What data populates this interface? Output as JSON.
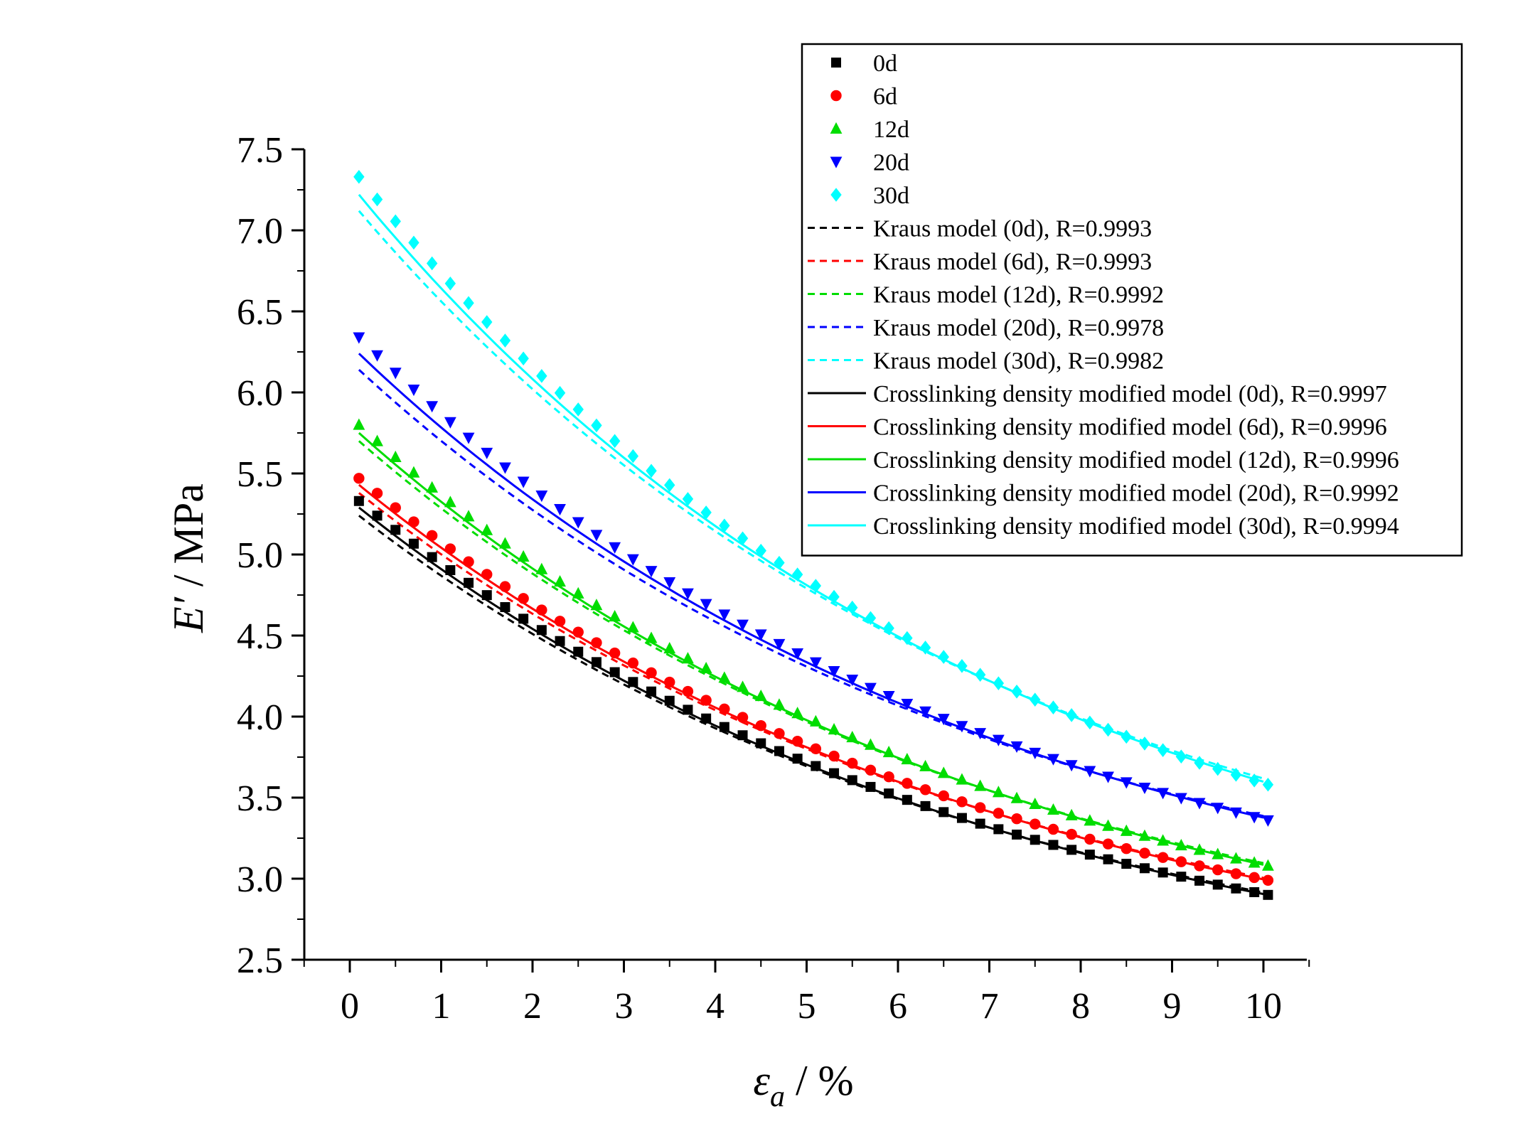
{
  "chart_data": {
    "type": "scatter",
    "xlabel_symbol": "ε",
    "xlabel_subscript": "a",
    "xlabel_unit": " / %",
    "ylabel_symbol": "E′",
    "ylabel_unit": " / MPa",
    "xlim": [
      -0.5,
      10.5
    ],
    "ylim": [
      2.5,
      7.5
    ],
    "x_ticks": [
      0,
      1,
      2,
      3,
      4,
      5,
      6,
      7,
      8,
      9,
      10
    ],
    "x_tick_labels": [
      "0",
      "1",
      "2",
      "3",
      "4",
      "5",
      "6",
      "7",
      "8",
      "9",
      "10"
    ],
    "y_ticks": [
      2.5,
      3.0,
      3.5,
      4.0,
      4.5,
      5.0,
      5.5,
      6.0,
      6.5,
      7.0,
      7.5
    ],
    "y_tick_labels": [
      "2.5",
      "3.0",
      "3.5",
      "4.0",
      "4.5",
      "5.0",
      "5.5",
      "6.0",
      "6.5",
      "7.0",
      "7.5"
    ],
    "legend_position": "top-right",
    "series": [
      {
        "name": "0d",
        "marker": "square",
        "color": "#000000",
        "start": 5.33,
        "end": 2.9
      },
      {
        "name": "6d",
        "marker": "circle",
        "color": "#ff0000",
        "start": 5.47,
        "end": 2.99
      },
      {
        "name": "12d",
        "marker": "triangle-up",
        "color": "#00dd00",
        "start": 5.8,
        "end": 3.08
      },
      {
        "name": "20d",
        "marker": "triangle-down",
        "color": "#0000ff",
        "start": 6.34,
        "end": 3.36
      },
      {
        "name": "30d",
        "marker": "diamond",
        "color": "#00ffff",
        "start": 7.33,
        "end": 3.58
      }
    ],
    "x_values": [
      0.1,
      0.3,
      0.5,
      0.7,
      0.9,
      1.1,
      1.3,
      1.5,
      1.7,
      1.9,
      2.1,
      2.3,
      2.5,
      2.7,
      2.9,
      3.1,
      3.3,
      3.5,
      3.7,
      3.9,
      4.1,
      4.3,
      4.5,
      4.7,
      4.9,
      5.1,
      5.3,
      5.5,
      5.7,
      5.9,
      6.1,
      6.3,
      6.5,
      6.7,
      6.9,
      7.1,
      7.3,
      7.5,
      7.7,
      7.9,
      8.1,
      8.3,
      8.5,
      8.7,
      8.9,
      9.1,
      9.3,
      9.5,
      9.7,
      9.9,
      10.05
    ],
    "fits": [
      {
        "label": "Kraus model (0d), R=0.9993",
        "series": "0d",
        "style": "dashed",
        "color": "#000000",
        "start": 5.24,
        "end": 2.91
      },
      {
        "label": "Kraus model (6d), R=0.9993",
        "series": "6d",
        "style": "dashed",
        "color": "#ff0000",
        "start": 5.38,
        "end": 3.0
      },
      {
        "label": "Kraus model (12d), R=0.9992",
        "series": "12d",
        "style": "dashed",
        "color": "#00dd00",
        "start": 5.7,
        "end": 3.09
      },
      {
        "label": "Kraus model (20d), R=0.9978",
        "series": "20d",
        "style": "dashed",
        "color": "#0000ff",
        "start": 6.14,
        "end": 3.38
      },
      {
        "label": "Kraus model (30d), R=0.9982",
        "series": "30d",
        "style": "dashed",
        "color": "#00ffff",
        "start": 7.12,
        "end": 3.61
      },
      {
        "label": "Crosslinking density modified model (0d), R=0.9997",
        "series": "0d",
        "style": "solid",
        "color": "#000000",
        "start": 5.29,
        "end": 2.9
      },
      {
        "label": "Crosslinking density modified model (6d), R=0.9996",
        "series": "6d",
        "style": "solid",
        "color": "#ff0000",
        "start": 5.43,
        "end": 2.99
      },
      {
        "label": "Crosslinking density modified model (12d), R=0.9996",
        "series": "12d",
        "style": "solid",
        "color": "#00dd00",
        "start": 5.75,
        "end": 3.08
      },
      {
        "label": "Crosslinking density modified model (20d), R=0.9992",
        "series": "20d",
        "style": "solid",
        "color": "#0000ff",
        "start": 6.24,
        "end": 3.37
      },
      {
        "label": "Crosslinking density modified model (30d), R=0.9994",
        "series": "30d",
        "style": "solid",
        "color": "#00ffff",
        "start": 7.22,
        "end": 3.59
      }
    ]
  }
}
